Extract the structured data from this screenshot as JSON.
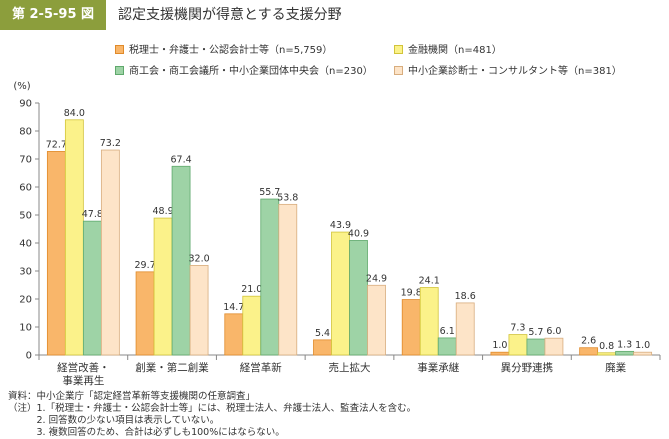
{
  "header": {
    "figure_number": "第 2-5-95 図",
    "title": "認定支援機関が得意とする支援分野"
  },
  "colors": {
    "badge": "#8c9e3c",
    "axis": "#888888"
  },
  "chart_data": {
    "type": "bar",
    "title": "認定支援機関が得意とする支援分野",
    "ylabel": "(%)",
    "xlabel": "",
    "ylim": [
      0,
      90
    ],
    "yticks": [
      0,
      10,
      20,
      30,
      40,
      50,
      60,
      70,
      80,
      90
    ],
    "grid": false,
    "legend_position": "top",
    "categories": [
      [
        "経営改善・",
        "事業再生"
      ],
      [
        "創業・第二創業"
      ],
      [
        "経営革新"
      ],
      [
        "売上拡大"
      ],
      [
        "事業承継"
      ],
      [
        "異分野連携"
      ],
      [
        "廃業"
      ]
    ],
    "series": [
      {
        "name": "税理士・弁護士・公認会計士等（n=5,759）",
        "color": "#f9b66a",
        "stroke": "#e08a2a",
        "values": [
          72.7,
          29.7,
          14.7,
          5.4,
          19.8,
          1.0,
          2.6
        ]
      },
      {
        "name": "金融機関（n=481）",
        "color": "#fbf28a",
        "stroke": "#d2c43a",
        "values": [
          84.0,
          48.9,
          21.0,
          43.9,
          24.1,
          7.3,
          0.8
        ]
      },
      {
        "name": "商工会・商工会議所・中小企業団体中央会（n=230）",
        "color": "#9ed3a6",
        "stroke": "#5fa96c",
        "values": [
          47.8,
          67.4,
          55.7,
          40.9,
          6.1,
          5.7,
          1.3
        ]
      },
      {
        "name": "中小企業診断士・コンサルタント等（n=381）",
        "color": "#fde4c8",
        "stroke": "#d8ad7e",
        "values": [
          73.2,
          32.0,
          53.8,
          24.9,
          18.6,
          6.0,
          1.0
        ]
      }
    ]
  },
  "notes": [
    "資料：中小企業庁「認定経営革新等支援機関の任意調査」",
    "（注）1.「税理士・弁護士・公認会計士等」には、税理士法人、弁護士法人、監査法人を含む。",
    "　　　2. 回答数の少ない項目は表示していない。",
    "　　　3. 複数回答のため、合計は必ずしも100%にはならない。"
  ]
}
